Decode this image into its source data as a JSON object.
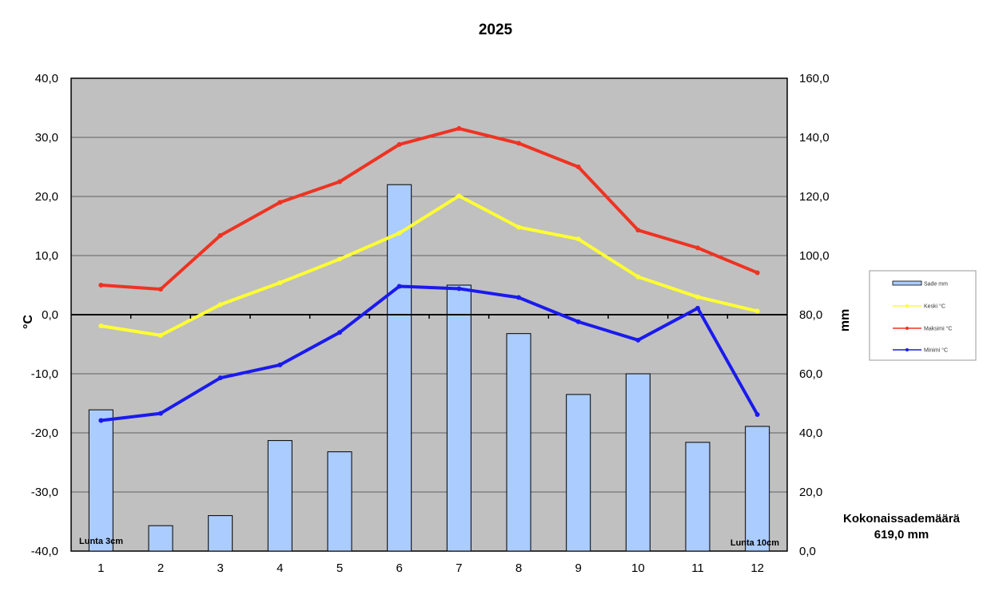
{
  "chart_data": {
    "type": "bar",
    "title": "2025",
    "categories": [
      "1",
      "2",
      "3",
      "4",
      "5",
      "6",
      "7",
      "8",
      "9",
      "10",
      "11",
      "12"
    ],
    "y_left": {
      "label": "°C",
      "range": [
        -40,
        40
      ],
      "ticks": [
        "40,0",
        "30,0",
        "20,0",
        "10,0",
        "0,0",
        "-10,0",
        "-20,0",
        "-30,0",
        "-40,0"
      ]
    },
    "y_right": {
      "label": "mm",
      "range": [
        0,
        160
      ],
      "ticks": [
        "160,0",
        "140,0",
        "120,0",
        "100,0",
        "80,0",
        "60,0",
        "40,0",
        "20,0",
        "0,0"
      ]
    },
    "grid": true,
    "legend_position": "right",
    "series": [
      {
        "name": "Sade mm",
        "type": "bar",
        "axis": "right",
        "color": "#aaccff",
        "values": [
          47.8,
          8.6,
          12.0,
          37.4,
          33.6,
          124.0,
          90.0,
          73.6,
          53.0,
          60.0,
          36.8,
          42.2
        ]
      },
      {
        "name": "Keski °C",
        "type": "line",
        "axis": "left",
        "color": "#ffff33",
        "values": [
          -1.9,
          -3.5,
          1.7,
          5.4,
          9.4,
          13.8,
          20.1,
          14.8,
          12.8,
          6.4,
          3.0,
          0.6
        ]
      },
      {
        "name": "Maksimi °C",
        "type": "line",
        "axis": "left",
        "color": "#ee3322",
        "values": [
          5.0,
          4.3,
          13.4,
          19.0,
          22.5,
          28.8,
          31.5,
          29.0,
          25.0,
          14.3,
          11.3,
          7.1
        ]
      },
      {
        "name": "Minimi °C",
        "type": "line",
        "axis": "left",
        "color": "#1a1aee",
        "values": [
          -17.9,
          -16.7,
          -10.7,
          -8.5,
          -3.0,
          4.8,
          4.4,
          2.9,
          -1.2,
          -4.3,
          1.1,
          -16.9
        ]
      }
    ],
    "annotations": [
      "Lunta 3cm",
      "Lunta 10cm"
    ]
  },
  "summary": {
    "line1": "Kokonaissademäärä",
    "line2": "619,0 mm"
  }
}
